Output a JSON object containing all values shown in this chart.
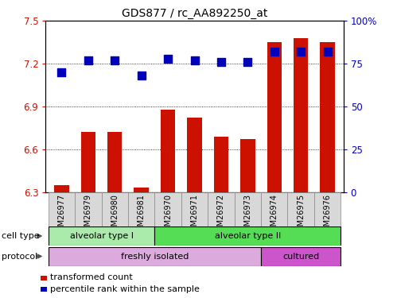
{
  "title": "GDS877 / rc_AA892250_at",
  "samples": [
    "GSM26977",
    "GSM26979",
    "GSM26980",
    "GSM26981",
    "GSM26970",
    "GSM26971",
    "GSM26972",
    "GSM26973",
    "GSM26974",
    "GSM26975",
    "GSM26976"
  ],
  "transformed_count": [
    6.35,
    6.72,
    6.72,
    6.33,
    6.88,
    6.82,
    6.69,
    6.67,
    7.35,
    7.38,
    7.35
  ],
  "percentile_rank": [
    70,
    77,
    77,
    68,
    78,
    77,
    76,
    76,
    82,
    82,
    82
  ],
  "ylim_left": [
    6.3,
    7.5
  ],
  "ylim_right": [
    0,
    100
  ],
  "yticks_left": [
    6.3,
    6.6,
    6.9,
    7.2,
    7.5
  ],
  "yticks_right": [
    0,
    25,
    50,
    75,
    100
  ],
  "bar_color": "#cc1100",
  "dot_color": "#0000bb",
  "bar_width": 0.55,
  "dot_size": 55,
  "cell_type_groups": [
    {
      "label": "alveolar type I",
      "start": 0,
      "end": 3,
      "color": "#aaeaaa"
    },
    {
      "label": "alveolar type II",
      "start": 4,
      "end": 10,
      "color": "#55dd55"
    }
  ],
  "protocol_groups": [
    {
      "label": "freshly isolated",
      "start": 0,
      "end": 7,
      "color": "#ddaadd"
    },
    {
      "label": "cultured",
      "start": 8,
      "end": 10,
      "color": "#cc55cc"
    }
  ],
  "legend_items": [
    {
      "label": "transformed count",
      "color": "#cc1100"
    },
    {
      "label": "percentile rank within the sample",
      "color": "#0000bb"
    }
  ],
  "left_axis_color": "#cc1100",
  "right_axis_color": "#0000bb",
  "grid_dotted_ticks": [
    6.6,
    6.9,
    7.2
  ],
  "cell_type_label": "cell type",
  "protocol_label": "protocol",
  "baseline": 6.3
}
